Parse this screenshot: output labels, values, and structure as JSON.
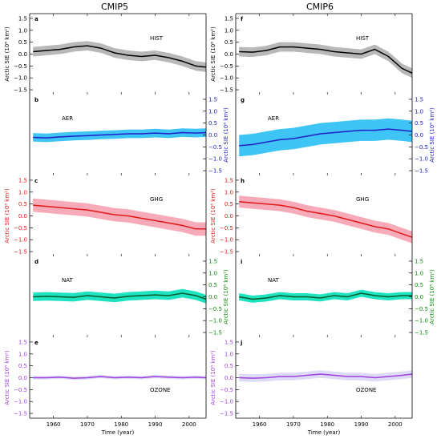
{
  "columns": [
    "CMIP5",
    "CMIP6"
  ],
  "x_axis": {
    "label": "Time (year)",
    "ticks": [
      "1960",
      "1970",
      "1980",
      "1990",
      "2000"
    ]
  },
  "y_axis": {
    "label": "Arctic SIE (10⁶ km²)",
    "ticks": [
      "1.5",
      "1.0",
      "0.5",
      "0.0",
      "−0.5",
      "−1.0",
      "−1.5"
    ]
  },
  "colors": {
    "HIST": "#000000",
    "AER": "#1f1fe0",
    "GHG": "#e01010",
    "NAT": "#0a7a0a",
    "OZONE": "#b040e0"
  },
  "chart_data": [
    {
      "type": "line",
      "panel": "a",
      "title": "HIST",
      "column": "CMIP5",
      "axis_side": "left",
      "x": [
        1954,
        1958,
        1962,
        1966,
        1970,
        1974,
        1978,
        1982,
        1986,
        1990,
        1994,
        1998,
        2002,
        2005
      ],
      "y": [
        0.1,
        0.15,
        0.2,
        0.3,
        0.35,
        0.25,
        0.05,
        -0.05,
        -0.1,
        -0.05,
        -0.15,
        -0.3,
        -0.5,
        -0.55
      ],
      "band": 0.2,
      "xlim": [
        1953,
        2005
      ],
      "ylim": [
        -1.7,
        1.7
      ]
    },
    {
      "type": "line",
      "panel": "b",
      "title": "AER",
      "column": "CMIP5",
      "axis_side": "right",
      "x": [
        1954,
        1958,
        1962,
        1966,
        1970,
        1974,
        1978,
        1982,
        1986,
        1990,
        1994,
        1998,
        2002,
        2005
      ],
      "y": [
        -0.1,
        -0.12,
        -0.08,
        -0.05,
        -0.03,
        0.0,
        0.02,
        0.05,
        0.05,
        0.08,
        0.05,
        0.1,
        0.08,
        0.1
      ],
      "band": 0.18,
      "xlim": [
        1953,
        2005
      ],
      "ylim": [
        -1.7,
        1.7
      ]
    },
    {
      "type": "line",
      "panel": "c",
      "title": "GHG",
      "column": "CMIP5",
      "axis_side": "left",
      "x": [
        1954,
        1958,
        1962,
        1966,
        1970,
        1974,
        1978,
        1982,
        1986,
        1990,
        1994,
        1998,
        2002,
        2005
      ],
      "y": [
        0.45,
        0.4,
        0.35,
        0.3,
        0.25,
        0.15,
        0.05,
        0.0,
        -0.1,
        -0.2,
        -0.3,
        -0.4,
        -0.55,
        -0.55
      ],
      "band": 0.28,
      "xlim": [
        1953,
        2005
      ],
      "ylim": [
        -1.7,
        1.7
      ]
    },
    {
      "type": "line",
      "panel": "d",
      "title": "NAT",
      "column": "CMIP5",
      "axis_side": "right",
      "x": [
        1954,
        1958,
        1962,
        1966,
        1970,
        1974,
        1978,
        1982,
        1986,
        1990,
        1994,
        1998,
        2002,
        2005
      ],
      "y": [
        0.0,
        0.02,
        0.0,
        -0.02,
        0.05,
        0.0,
        -0.05,
        0.02,
        0.05,
        0.08,
        0.05,
        0.15,
        0.05,
        -0.1
      ],
      "band": 0.18,
      "xlim": [
        1953,
        2005
      ],
      "ylim": [
        -1.7,
        1.7
      ]
    },
    {
      "type": "line",
      "panel": "e",
      "title": "OZONE",
      "column": "CMIP5",
      "axis_side": "left",
      "x": [
        1954,
        1958,
        1962,
        1966,
        1970,
        1974,
        1978,
        1982,
        1986,
        1990,
        1994,
        1998,
        2002,
        2005
      ],
      "y": [
        0.0,
        0.0,
        0.02,
        -0.02,
        0.0,
        0.05,
        0.0,
        0.02,
        0.0,
        0.05,
        0.02,
        0.0,
        0.02,
        0.0
      ],
      "band": 0.07,
      "xlim": [
        1953,
        2005
      ],
      "ylim": [
        -1.7,
        1.7
      ]
    },
    {
      "type": "line",
      "panel": "f",
      "title": "HIST",
      "column": "CMIP6",
      "axis_side": "left",
      "x": [
        1954,
        1958,
        1962,
        1966,
        1970,
        1974,
        1978,
        1982,
        1986,
        1990,
        1994,
        1998,
        2002,
        2005
      ],
      "y": [
        0.1,
        0.08,
        0.15,
        0.3,
        0.3,
        0.25,
        0.2,
        0.1,
        0.05,
        0.0,
        0.2,
        -0.1,
        -0.6,
        -0.8
      ],
      "band": 0.2,
      "xlim": [
        1953,
        2005
      ],
      "ylim": [
        -1.7,
        1.7
      ]
    },
    {
      "type": "line",
      "panel": "g",
      "title": "AER",
      "column": "CMIP6",
      "axis_side": "right",
      "x": [
        1954,
        1958,
        1962,
        1966,
        1970,
        1974,
        1978,
        1982,
        1986,
        1990,
        1994,
        1998,
        2002,
        2005
      ],
      "y": [
        -0.45,
        -0.4,
        -0.3,
        -0.2,
        -0.15,
        -0.05,
        0.05,
        0.1,
        0.15,
        0.2,
        0.2,
        0.25,
        0.2,
        0.15
      ],
      "band": 0.45,
      "xlim": [
        1953,
        2005
      ],
      "ylim": [
        -1.7,
        1.7
      ]
    },
    {
      "type": "line",
      "panel": "h",
      "title": "GHG",
      "column": "CMIP6",
      "axis_side": "left",
      "x": [
        1954,
        1958,
        1962,
        1966,
        1970,
        1974,
        1978,
        1982,
        1986,
        1990,
        1994,
        1998,
        2002,
        2005
      ],
      "y": [
        0.6,
        0.55,
        0.5,
        0.45,
        0.35,
        0.2,
        0.1,
        0.0,
        -0.15,
        -0.3,
        -0.45,
        -0.55,
        -0.75,
        -0.9
      ],
      "band": 0.25,
      "xlim": [
        1953,
        2005
      ],
      "ylim": [
        -1.7,
        1.7
      ]
    },
    {
      "type": "line",
      "panel": "i",
      "title": "NAT",
      "column": "CMIP6",
      "axis_side": "right",
      "x": [
        1954,
        1958,
        1962,
        1966,
        1970,
        1974,
        1978,
        1982,
        1986,
        1990,
        1994,
        1998,
        2002,
        2005
      ],
      "y": [
        0.0,
        -0.1,
        -0.05,
        0.05,
        0.0,
        0.0,
        -0.05,
        0.05,
        0.0,
        0.15,
        0.05,
        0.0,
        0.05,
        0.05
      ],
      "band": 0.15,
      "xlim": [
        1953,
        2005
      ],
      "ylim": [
        -1.7,
        1.7
      ]
    },
    {
      "type": "line",
      "panel": "j",
      "title": "OZONE",
      "column": "CMIP6",
      "axis_side": "left",
      "x": [
        1954,
        1958,
        1962,
        1966,
        1970,
        1974,
        1978,
        1982,
        1986,
        1990,
        1994,
        1998,
        2002,
        2005
      ],
      "y": [
        0.0,
        -0.02,
        0.0,
        0.05,
        0.05,
        0.1,
        0.15,
        0.1,
        0.05,
        0.05,
        0.0,
        0.05,
        0.1,
        0.15
      ],
      "band": 0.16,
      "xlim": [
        1953,
        2005
      ],
      "ylim": [
        -1.7,
        1.7
      ]
    }
  ]
}
